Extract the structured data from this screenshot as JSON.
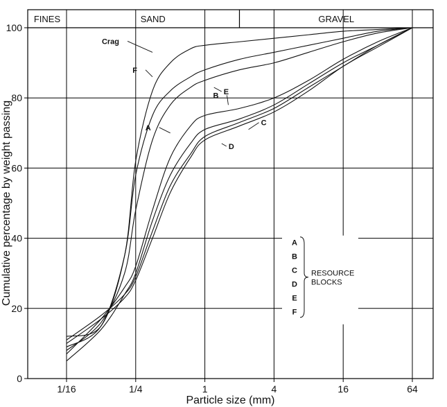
{
  "chart_data": {
    "type": "line",
    "title": "",
    "xlabel": "Particle size (mm)",
    "ylabel": "Cumulative percentage by weight passing",
    "x_scale": "log",
    "xlim": [
      0.0625,
      64
    ],
    "ylim": [
      0,
      100
    ],
    "x_ticks": [
      {
        "value": 0.0625,
        "label": "1/16"
      },
      {
        "value": 0.25,
        "label": "1/4"
      },
      {
        "value": 1,
        "label": "1"
      },
      {
        "value": 4,
        "label": "4"
      },
      {
        "value": 16,
        "label": "16"
      },
      {
        "value": 64,
        "label": "64"
      }
    ],
    "y_ticks": [
      0,
      20,
      40,
      60,
      80,
      100
    ],
    "grid": true,
    "zones": [
      {
        "label": "FINES",
        "from": 0.0625,
        "to": 0.0625
      },
      {
        "label": "SAND",
        "from": 0.0625,
        "to": 2
      },
      {
        "label": "GRAVEL",
        "from": 2,
        "to": 64
      }
    ],
    "series": [
      {
        "name": "Crag",
        "x": [
          0.0625,
          0.125,
          0.2,
          0.25,
          0.35,
          0.5,
          0.75,
          1,
          2,
          4,
          8,
          16,
          32,
          64
        ],
        "y": [
          12,
          15,
          35,
          62,
          82,
          90,
          94,
          95,
          96,
          97,
          98,
          99,
          99.5,
          100
        ]
      },
      {
        "name": "F",
        "x": [
          0.0625,
          0.125,
          0.2,
          0.25,
          0.35,
          0.5,
          0.75,
          1,
          2,
          4,
          8,
          16,
          32,
          64
        ],
        "y": [
          9,
          15,
          35,
          58,
          75,
          82,
          86,
          88,
          91,
          93,
          95,
          97,
          99,
          100
        ]
      },
      {
        "name": "E",
        "x": [
          0.0625,
          0.125,
          0.2,
          0.25,
          0.35,
          0.5,
          0.75,
          1,
          2,
          4,
          8,
          16,
          32,
          64
        ],
        "y": [
          8,
          16,
          30,
          48,
          68,
          78,
          83,
          85,
          88,
          90,
          93,
          96,
          98.5,
          100
        ]
      },
      {
        "name": "B",
        "x": [
          0.0625,
          0.125,
          0.2,
          0.25,
          0.35,
          0.5,
          0.75,
          1,
          2,
          4,
          8,
          16,
          32,
          64
        ],
        "y": [
          7,
          17,
          26,
          32,
          48,
          63,
          72,
          75,
          77,
          80,
          85,
          91,
          96,
          100
        ]
      },
      {
        "name": "A",
        "x": [
          0.0625,
          0.125,
          0.2,
          0.25,
          0.35,
          0.5,
          0.75,
          1,
          2,
          4,
          8,
          16,
          32,
          64
        ],
        "y": [
          5,
          14,
          24,
          30,
          45,
          58,
          67,
          71,
          74,
          78,
          84,
          90,
          95,
          100
        ]
      },
      {
        "name": "C",
        "x": [
          0.0625,
          0.125,
          0.2,
          0.25,
          0.35,
          0.5,
          0.75,
          1,
          2,
          4,
          8,
          16,
          32,
          64
        ],
        "y": [
          11,
          18,
          24,
          29,
          42,
          55,
          64,
          69,
          73,
          77,
          83,
          89,
          95,
          100
        ]
      },
      {
        "name": "D",
        "x": [
          0.0625,
          0.125,
          0.2,
          0.25,
          0.35,
          0.5,
          0.75,
          1,
          2,
          4,
          8,
          16,
          32,
          64
        ],
        "y": [
          10,
          17,
          23,
          28,
          40,
          53,
          63,
          68,
          72,
          76,
          82,
          89,
          94.5,
          100
        ]
      }
    ],
    "annotations": [
      {
        "text": "Crag",
        "series": "Crag",
        "x": 0.35,
        "y": 93
      },
      {
        "text": "F",
        "series": "F",
        "x": 0.35,
        "y": 86
      },
      {
        "text": "E",
        "series": "E",
        "x": 1.2,
        "y": 83
      },
      {
        "text": "B",
        "series": "B",
        "x": 1.6,
        "y": 78
      },
      {
        "text": "A",
        "series": "A",
        "x": 0.5,
        "y": 70
      },
      {
        "text": "C",
        "series": "C",
        "x": 2.4,
        "y": 71
      },
      {
        "text": "D",
        "series": "D",
        "x": 1.4,
        "y": 67
      }
    ],
    "legend": {
      "placement": "bottom-right",
      "items": [
        "A",
        "B",
        "C",
        "D",
        "E",
        "F"
      ],
      "caption": [
        "RESOURCE",
        "BLOCKS"
      ]
    }
  }
}
